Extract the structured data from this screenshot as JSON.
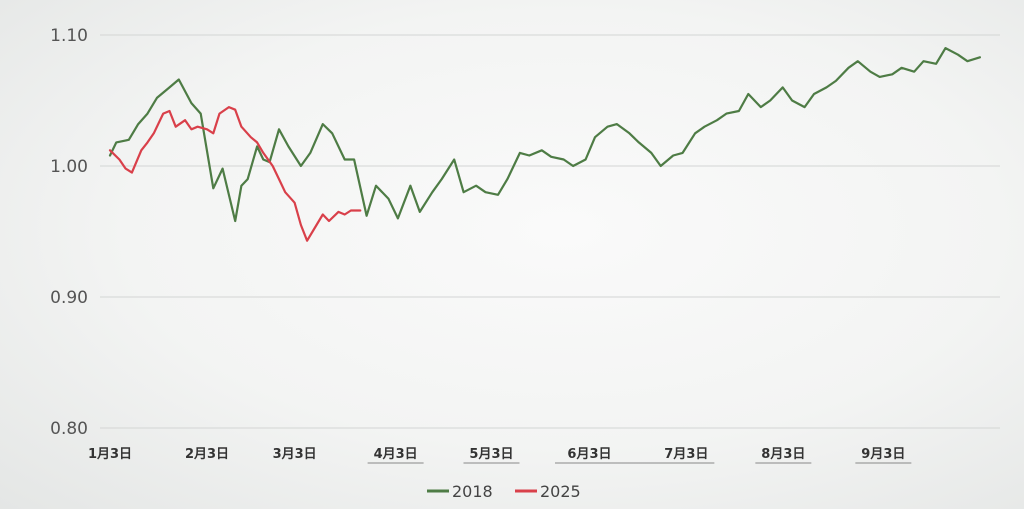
{
  "chart_data": {
    "type": "line",
    "title": "",
    "xlabel": "",
    "ylabel": "",
    "x_tick_labels": [
      "1月3日",
      "2月3日",
      "3月3日",
      "4月3日",
      "5月3日",
      "6月3日",
      "7月3日",
      "8月3日",
      "9月3日"
    ],
    "y_tick_labels": [
      "1.10",
      "1.00",
      "0.90",
      "0.80"
    ],
    "y_ticks": [
      1.1,
      1.0,
      0.9,
      0.8
    ],
    "ylim": [
      0.8,
      1.1
    ],
    "grid": true,
    "legend": "bottom",
    "series": [
      {
        "name": "2018",
        "color": "#4e7c45",
        "x": [
          "01-03",
          "01-05",
          "01-09",
          "01-12",
          "01-15",
          "01-18",
          "01-22",
          "01-25",
          "01-29",
          "02-01",
          "02-05",
          "02-08",
          "02-12",
          "02-14",
          "02-16",
          "02-19",
          "02-21",
          "02-23",
          "02-26",
          "03-01",
          "03-05",
          "03-08",
          "03-12",
          "03-15",
          "03-19",
          "03-22",
          "03-26",
          "03-29",
          "04-02",
          "04-05",
          "04-09",
          "04-12",
          "04-16",
          "04-19",
          "04-23",
          "04-26",
          "04-30",
          "05-03",
          "05-07",
          "05-10",
          "05-14",
          "05-17",
          "05-21",
          "05-24",
          "05-28",
          "05-31",
          "06-04",
          "06-07",
          "06-11",
          "06-14",
          "06-18",
          "06-21",
          "06-25",
          "06-28",
          "07-02",
          "07-05",
          "07-09",
          "07-12",
          "07-16",
          "07-19",
          "07-23",
          "07-26",
          "07-30",
          "08-02",
          "08-06",
          "08-09",
          "08-13",
          "08-16",
          "08-20",
          "08-23",
          "08-27",
          "08-30",
          "09-03",
          "09-06",
          "09-10",
          "09-13",
          "09-17",
          "09-20",
          "09-24",
          "09-27",
          "10-01",
          "10-04",
          "10-08"
        ],
        "values": [
          1.008,
          1.018,
          1.02,
          1.032,
          1.04,
          1.052,
          1.06,
          1.066,
          1.048,
          1.04,
          0.983,
          0.998,
          0.958,
          0.985,
          0.99,
          1.015,
          1.005,
          1.003,
          1.028,
          1.015,
          1.0,
          1.01,
          1.032,
          1.025,
          1.005,
          1.005,
          0.962,
          0.985,
          0.975,
          0.96,
          0.985,
          0.965,
          0.98,
          0.99,
          1.005,
          0.98,
          0.985,
          0.98,
          0.978,
          0.99,
          1.01,
          1.008,
          1.012,
          1.007,
          1.005,
          1.0,
          1.005,
          1.022,
          1.03,
          1.032,
          1.025,
          1.018,
          1.01,
          1.0,
          1.008,
          1.01,
          1.025,
          1.03,
          1.035,
          1.04,
          1.042,
          1.055,
          1.045,
          1.05,
          1.06,
          1.05,
          1.045,
          1.055,
          1.06,
          1.065,
          1.075,
          1.08,
          1.072,
          1.068,
          1.07,
          1.075,
          1.072,
          1.08,
          1.078,
          1.09,
          1.085,
          1.08,
          1.083
        ]
      },
      {
        "name": "2025",
        "color": "#d9404a",
        "x": [
          "01-03",
          "01-06",
          "01-08",
          "01-10",
          "01-13",
          "01-15",
          "01-17",
          "01-20",
          "01-22",
          "01-24",
          "01-27",
          "01-29",
          "01-31",
          "02-03",
          "02-05",
          "02-07",
          "02-10",
          "02-12",
          "02-14",
          "02-17",
          "02-19",
          "02-21",
          "02-24",
          "02-26",
          "02-28",
          "03-03",
          "03-05",
          "03-07",
          "03-10",
          "03-12",
          "03-14",
          "03-17",
          "03-19",
          "03-21",
          "03-24"
        ],
        "values": [
          1.012,
          1.005,
          0.998,
          0.995,
          1.012,
          1.018,
          1.025,
          1.04,
          1.042,
          1.03,
          1.035,
          1.028,
          1.03,
          1.028,
          1.025,
          1.04,
          1.045,
          1.043,
          1.03,
          1.022,
          1.018,
          1.01,
          1.0,
          0.99,
          0.98,
          0.972,
          0.955,
          0.943,
          0.955,
          0.963,
          0.958,
          0.965,
          0.963,
          0.966,
          0.966
        ]
      }
    ]
  }
}
